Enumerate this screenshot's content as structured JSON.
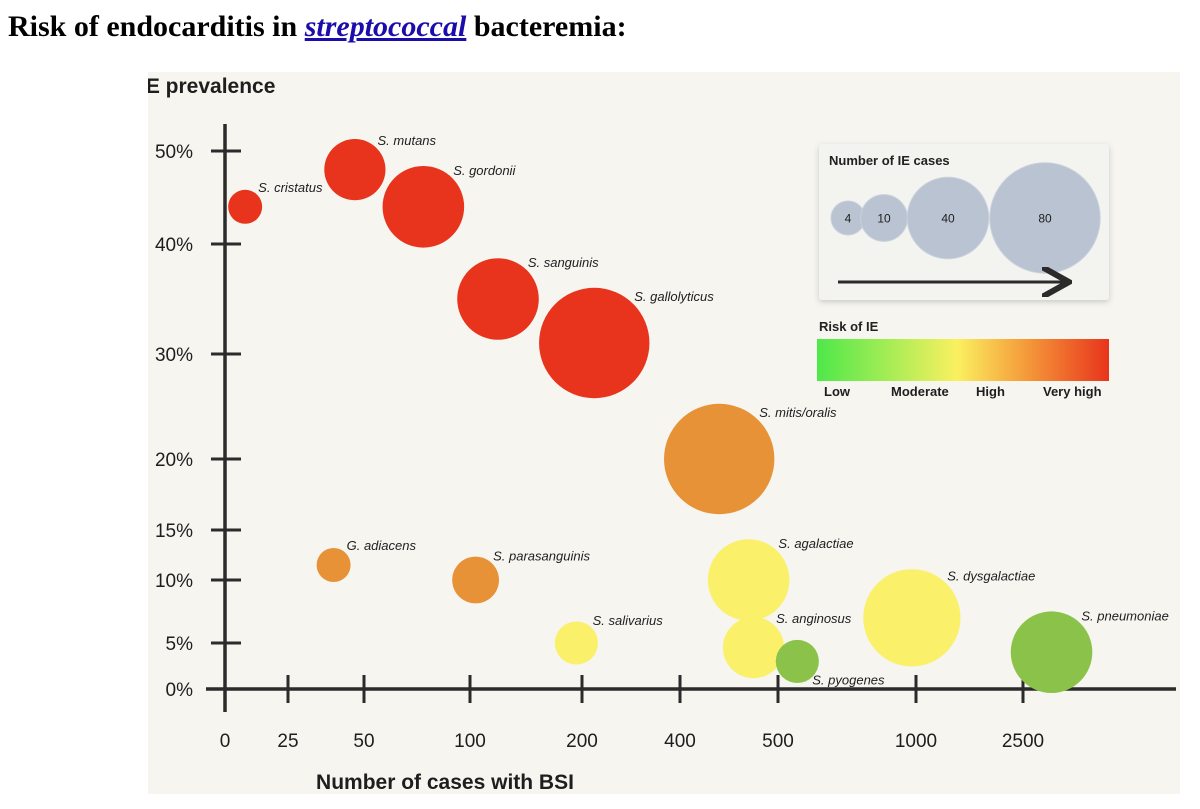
{
  "page": {
    "title_prefix": "Risk of endocarditis in ",
    "title_link": "streptococcal",
    "title_suffix": " bacteremia:"
  },
  "chart_data": {
    "type": "scatter",
    "subtype": "bubble",
    "title": "",
    "xlabel": "Number of cases with BSI",
    "ylabel": "IE prevalence",
    "x_scale": "ordinal-log",
    "x_ticks": [
      0,
      25,
      50,
      100,
      200,
      400,
      500,
      1000,
      2500
    ],
    "x_tick_labels": [
      "0",
      "25",
      "50",
      "100",
      "200",
      "400",
      "500",
      "1000",
      "2500"
    ],
    "y_ticks": [
      0,
      5,
      10,
      15,
      20,
      30,
      40,
      50
    ],
    "y_tick_labels": [
      "0%",
      "5%",
      "10%",
      "15%",
      "20%",
      "30%",
      "40%",
      "50%"
    ],
    "grid": false,
    "points": [
      {
        "label": "S. cristatus",
        "x": 8,
        "y": 44,
        "ie_cases": 4,
        "risk": "Very high",
        "color": "#e8341c"
      },
      {
        "label": "S. mutans",
        "x": 47,
        "y": 48,
        "ie_cases": 20,
        "risk": "Very high",
        "color": "#e8341c"
      },
      {
        "label": "S. gordonii",
        "x": 78,
        "y": 44,
        "ie_cases": 40,
        "risk": "Very high",
        "color": "#e8341c"
      },
      {
        "label": "S. sanguinis",
        "x": 125,
        "y": 35,
        "ie_cases": 40,
        "risk": "Very high",
        "color": "#e8341c"
      },
      {
        "label": "S. gallolyticus",
        "x": 225,
        "y": 31,
        "ie_cases": 80,
        "risk": "Very high",
        "color": "#e8341c"
      },
      {
        "label": "S. mitis/oralis",
        "x": 440,
        "y": 20,
        "ie_cases": 80,
        "risk": "High",
        "color": "#e89238"
      },
      {
        "label": "G. adiacens",
        "x": 40,
        "y": 11.5,
        "ie_cases": 4,
        "risk": "High",
        "color": "#e89238"
      },
      {
        "label": "S. parasanguinis",
        "x": 105,
        "y": 10,
        "ie_cases": 10,
        "risk": "High",
        "color": "#e89238"
      },
      {
        "label": "S. agalactiae",
        "x": 470,
        "y": 10,
        "ie_cases": 40,
        "risk": "Moderate",
        "color": "#faf06a"
      },
      {
        "label": "S. dysgalactiae",
        "x": 985,
        "y": 7,
        "ie_cases": 60,
        "risk": "Moderate",
        "color": "#faf06a"
      },
      {
        "label": "S. salivarius",
        "x": 195,
        "y": 5,
        "ie_cases": 8,
        "risk": "Moderate",
        "color": "#faf06a"
      },
      {
        "label": "S. anginosus",
        "x": 475,
        "y": 4.5,
        "ie_cases": 20,
        "risk": "Moderate",
        "color": "#faf06a"
      },
      {
        "label": "S. pyogenes",
        "x": 570,
        "y": 3,
        "ie_cases": 8,
        "risk": "Low",
        "color": "#8bc34a"
      },
      {
        "label": "S. pneumoniae",
        "x": 2900,
        "y": 4,
        "ie_cases": 40,
        "risk": "Low",
        "color": "#8bc34a"
      }
    ],
    "size_legend": {
      "title": "Number of IE cases",
      "entries": [
        4,
        10,
        40,
        80
      ]
    },
    "color_legend": {
      "title": "Risk of IE",
      "labels": [
        "Low",
        "Moderate",
        "High",
        "Very high"
      ],
      "colors": [
        "#4ee84a",
        "#faf060",
        "#f5a03c",
        "#e8341c"
      ]
    }
  }
}
